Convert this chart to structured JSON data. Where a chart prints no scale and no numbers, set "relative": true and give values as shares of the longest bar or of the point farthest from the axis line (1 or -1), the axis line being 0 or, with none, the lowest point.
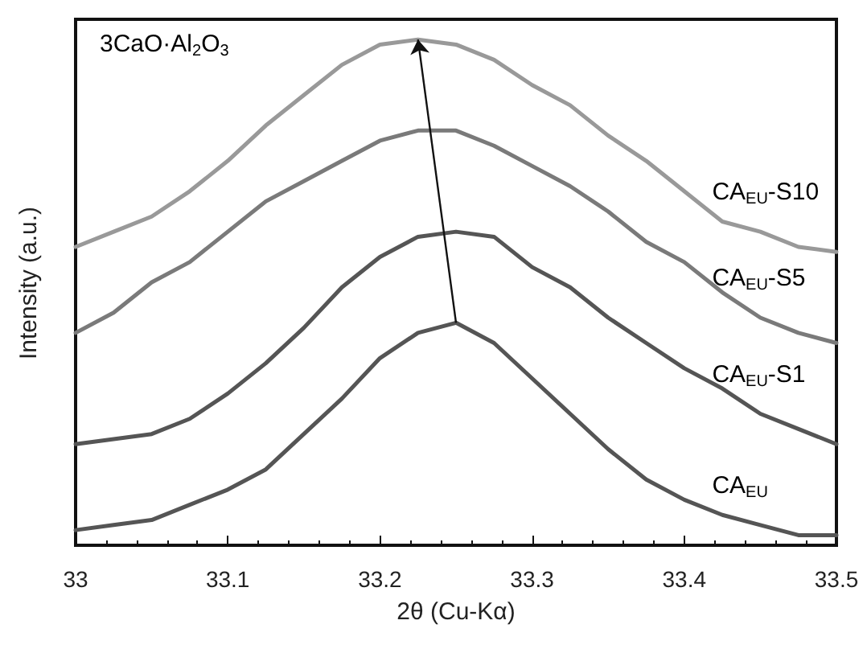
{
  "chart_data": {
    "type": "line",
    "relative": true,
    "xlabel": "2θ (Cu-Kα)",
    "ylabel": "Intensity (a.u.)",
    "xlim": [
      33,
      33.5
    ],
    "xticks": [
      33,
      33.1,
      33.2,
      33.3,
      33.4,
      33.5
    ],
    "legend": false,
    "grid": false,
    "marker": "none",
    "line_style": "solid",
    "annotations": [
      "3CaO·Al$_{2}$O$_{3}$"
    ],
    "x": [
      33,
      33.025,
      33.05,
      33.075,
      33.1,
      33.125,
      33.15,
      33.175,
      33.2,
      33.225,
      33.25,
      33.275,
      33.3,
      33.325,
      33.35,
      33.375,
      33.4,
      33.425,
      33.45,
      33.475,
      33.5
    ],
    "series": [
      {
        "name": "CA$_{EU}$",
        "color": "#555555",
        "values": [
          0.03,
          0.04,
          0.05,
          0.08,
          0.11,
          0.15,
          0.22,
          0.29,
          0.37,
          0.42,
          0.44,
          0.4,
          0.33,
          0.26,
          0.19,
          0.13,
          0.09,
          0.06,
          0.04,
          0.02,
          0.02
        ]
      },
      {
        "name": "CA$_{EU}$-S1",
        "color": "#555555",
        "values": [
          0.2,
          0.21,
          0.22,
          0.25,
          0.3,
          0.36,
          0.43,
          0.51,
          0.57,
          0.61,
          0.62,
          0.61,
          0.55,
          0.51,
          0.45,
          0.4,
          0.35,
          0.31,
          0.26,
          0.23,
          0.2
        ]
      },
      {
        "name": "CA$_{EU}$-S5",
        "color": "#7a7a7a",
        "values": [
          0.42,
          0.46,
          0.52,
          0.56,
          0.62,
          0.68,
          0.72,
          0.76,
          0.8,
          0.82,
          0.82,
          0.79,
          0.75,
          0.71,
          0.66,
          0.6,
          0.56,
          0.5,
          0.45,
          0.42,
          0.4
        ]
      },
      {
        "name": "CA$_{EU}$-S10",
        "color": "#999999",
        "values": [
          0.59,
          0.62,
          0.65,
          0.7,
          0.76,
          0.83,
          0.89,
          0.95,
          0.99,
          1.0,
          0.99,
          0.96,
          0.91,
          0.87,
          0.81,
          0.76,
          0.7,
          0.64,
          0.62,
          0.59,
          0.58
        ]
      }
    ]
  }
}
